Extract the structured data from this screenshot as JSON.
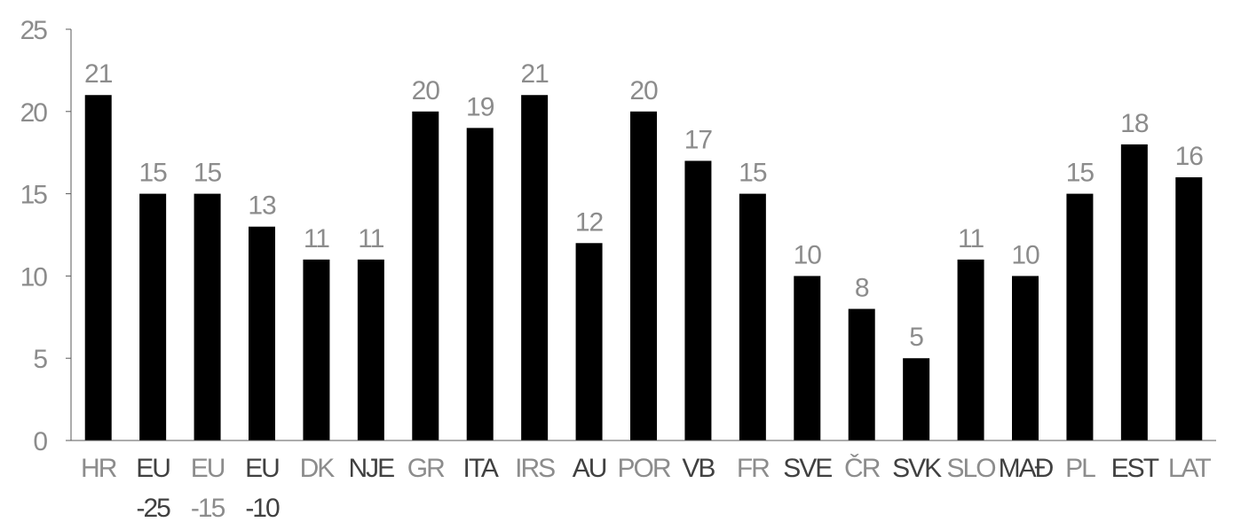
{
  "chart_data": {
    "type": "bar",
    "title": "",
    "xlabel": "",
    "ylabel": "",
    "ylim": [
      0,
      25
    ],
    "yticks": [
      0,
      5,
      10,
      15,
      20,
      25
    ],
    "grid": false,
    "legend": "none",
    "categories": [
      [
        "HR"
      ],
      [
        "EU",
        "-25"
      ],
      [
        "EU",
        "-15"
      ],
      [
        "EU",
        "-10"
      ],
      [
        "DK"
      ],
      [
        "NJE"
      ],
      [
        "GR"
      ],
      [
        "ITA"
      ],
      [
        "IRS"
      ],
      [
        "AU"
      ],
      [
        "POR"
      ],
      [
        "VB"
      ],
      [
        "FR"
      ],
      [
        "SVE"
      ],
      [
        "ČR"
      ],
      [
        "SVK"
      ],
      [
        "SLO"
      ],
      [
        "MAĐ"
      ],
      [
        "PL"
      ],
      [
        "EST"
      ],
      [
        "LAT"
      ]
    ],
    "category_colors": [
      "#8c8c8c",
      "#404040",
      "#8c8c8c",
      "#404040",
      "#8c8c8c",
      "#404040",
      "#8c8c8c",
      "#404040",
      "#8c8c8c",
      "#404040",
      "#8c8c8c",
      "#404040",
      "#8c8c8c",
      "#404040",
      "#8c8c8c",
      "#404040",
      "#8c8c8c",
      "#404040",
      "#8c8c8c",
      "#404040",
      "#8c8c8c"
    ],
    "values": [
      21,
      15,
      15,
      13,
      11,
      11,
      20,
      19,
      21,
      12,
      20,
      17,
      15,
      10,
      8,
      5,
      11,
      10,
      15,
      18,
      16
    ],
    "bar_color": "#000000",
    "axis_color": "#595959",
    "label_color": "#8c8c8c"
  }
}
